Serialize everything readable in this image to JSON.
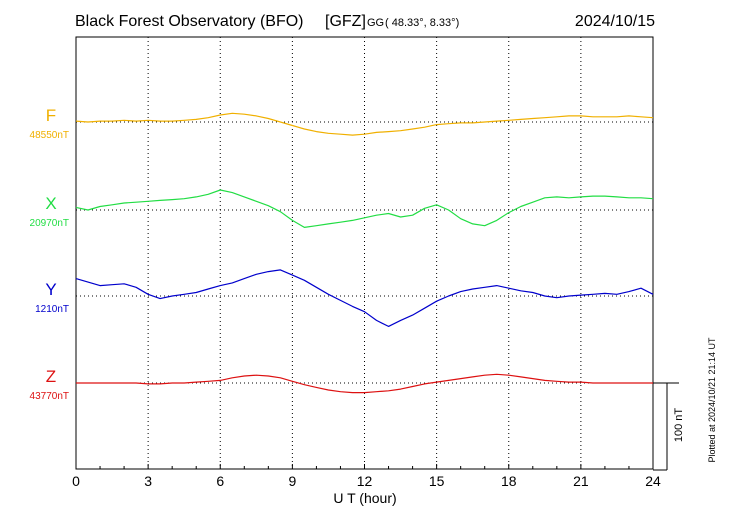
{
  "chart_data": {
    "type": "line",
    "title": "Black Forest Observatory (BFO)",
    "institute": "[GFZ]",
    "coord_system": "GG",
    "coordinates": "( 48.33°,   8.33°)",
    "date": "2024/10/15",
    "xlabel": "U T (hour)",
    "xlim": [
      0,
      24
    ],
    "x_ticks": [
      0,
      3,
      6,
      9,
      12,
      15,
      18,
      21,
      24
    ],
    "x_tick_labels": [
      "0",
      "3",
      "6",
      "9",
      "12",
      "15",
      "18",
      "21",
      "24"
    ],
    "grid": true,
    "scale_bar_nt": 100,
    "scale_bar_label": "100 nT",
    "plotted_note": "Plotted at 2024/10/21 21:14 UT",
    "series": [
      {
        "name": "F",
        "baseline_label": "48550nT",
        "baseline_nt": 48550,
        "color": "#f0b000",
        "x": [
          0,
          0.5,
          1,
          1.5,
          2,
          2.5,
          3,
          3.5,
          4,
          4.5,
          5,
          5.5,
          6,
          6.5,
          7,
          7.5,
          8,
          8.5,
          9,
          9.5,
          10,
          10.5,
          11,
          11.5,
          12,
          12.5,
          13,
          13.5,
          14,
          14.5,
          15,
          15.5,
          16,
          16.5,
          17,
          17.5,
          18,
          18.5,
          19,
          19.5,
          20,
          20.5,
          21,
          21.5,
          22,
          22.5,
          23,
          23.5,
          24
        ],
        "values": [
          1,
          0,
          1,
          1,
          2,
          1,
          2,
          1,
          1,
          2,
          3,
          5,
          8,
          10,
          9,
          7,
          4,
          0,
          -4,
          -8,
          -11,
          -13,
          -14,
          -15,
          -14,
          -12,
          -11,
          -10,
          -8,
          -6,
          -3,
          -2,
          -1,
          -1,
          0,
          1,
          2,
          3,
          4,
          5,
          6,
          7,
          7,
          6,
          6,
          6,
          7,
          6,
          5
        ]
      },
      {
        "name": "X",
        "baseline_label": "20970nT",
        "baseline_nt": 20970,
        "color": "#22dd44",
        "x": [
          0,
          0.5,
          1,
          1.5,
          2,
          2.5,
          3,
          3.5,
          4,
          4.5,
          5,
          5.5,
          6,
          6.5,
          7,
          7.5,
          8,
          8.5,
          9,
          9.5,
          10,
          10.5,
          11,
          11.5,
          12,
          12.5,
          13,
          13.5,
          14,
          14.5,
          15,
          15.5,
          16,
          16.5,
          17,
          17.5,
          18,
          18.5,
          19,
          19.5,
          20,
          20.5,
          21,
          21.5,
          22,
          22.5,
          23,
          23.5,
          24
        ],
        "values": [
          3,
          0,
          4,
          6,
          8,
          9,
          10,
          11,
          12,
          13,
          15,
          18,
          23,
          20,
          15,
          10,
          5,
          -2,
          -12,
          -20,
          -18,
          -16,
          -14,
          -12,
          -9,
          -6,
          -4,
          -8,
          -6,
          2,
          6,
          0,
          -10,
          -16,
          -18,
          -12,
          -3,
          4,
          9,
          14,
          15,
          14,
          15,
          16,
          16,
          15,
          14,
          14,
          13
        ]
      },
      {
        "name": "Y",
        "baseline_label": "1210nT",
        "baseline_nt": 1210,
        "color": "#0000cc",
        "x": [
          0,
          0.5,
          1,
          1.5,
          2,
          2.5,
          3,
          3.5,
          4,
          4.5,
          5,
          5.5,
          6,
          6.5,
          7,
          7.5,
          8,
          8.5,
          9,
          9.5,
          10,
          10.5,
          11,
          11.5,
          12,
          12.5,
          13,
          13.5,
          14,
          14.5,
          15,
          15.5,
          16,
          16.5,
          17,
          17.5,
          18,
          18.5,
          19,
          19.5,
          20,
          20.5,
          21,
          21.5,
          22,
          22.5,
          23,
          23.5,
          24
        ],
        "values": [
          20,
          16,
          12,
          13,
          14,
          10,
          2,
          -3,
          0,
          2,
          4,
          8,
          12,
          15,
          20,
          25,
          28,
          30,
          24,
          18,
          10,
          2,
          -5,
          -12,
          -18,
          -28,
          -35,
          -28,
          -22,
          -14,
          -6,
          0,
          5,
          8,
          10,
          12,
          9,
          6,
          4,
          0,
          -2,
          0,
          1,
          2,
          3,
          2,
          5,
          9,
          2
        ]
      },
      {
        "name": "Z",
        "baseline_label": "43770nT",
        "baseline_nt": 43770,
        "color": "#dd1111",
        "x": [
          0,
          0.5,
          1,
          1.5,
          2,
          2.5,
          3,
          3.5,
          4,
          4.5,
          5,
          5.5,
          6,
          6.5,
          7,
          7.5,
          8,
          8.5,
          9,
          9.5,
          10,
          10.5,
          11,
          11.5,
          12,
          12.5,
          13,
          13.5,
          14,
          14.5,
          15,
          15.5,
          16,
          16.5,
          17,
          17.5,
          18,
          18.5,
          19,
          19.5,
          20,
          20.5,
          21,
          21.5,
          22,
          22.5,
          23,
          23.5,
          24
        ],
        "values": [
          0,
          0,
          0,
          0,
          0,
          0,
          -1,
          -1,
          0,
          0,
          1,
          2,
          3,
          6,
          8,
          9,
          8,
          6,
          2,
          -2,
          -5,
          -8,
          -10,
          -11,
          -11,
          -10,
          -9,
          -7,
          -4,
          -1,
          1,
          3,
          5,
          7,
          9,
          10,
          9,
          7,
          5,
          3,
          2,
          1,
          1,
          0,
          0,
          0,
          0,
          0,
          0
        ]
      }
    ]
  }
}
